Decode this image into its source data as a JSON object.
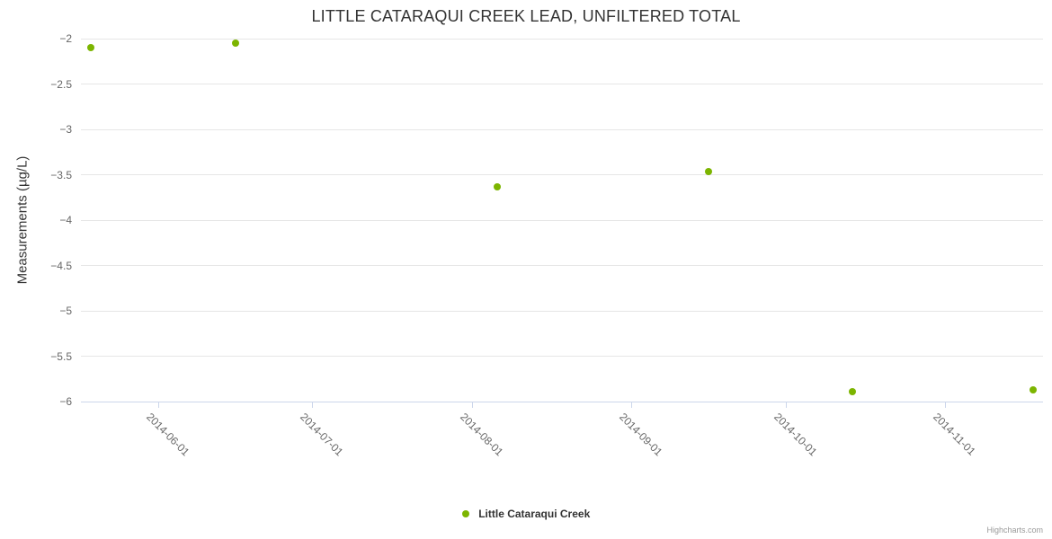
{
  "chart_data": {
    "type": "scatter",
    "title": "LITTLE CATARAQUI CREEK LEAD, UNFILTERED TOTAL",
    "ylabel": "Measurements (µg/L)",
    "grid": true,
    "legend_position": "bottom-center",
    "xaxis": {
      "min": "2014-05-17",
      "max": "2014-11-20",
      "ticks": [
        {
          "date": "2014-06-01",
          "label": "2014-06-01"
        },
        {
          "date": "2014-07-01",
          "label": "2014-07-01"
        },
        {
          "date": "2014-08-01",
          "label": "2014-08-01"
        },
        {
          "date": "2014-09-01",
          "label": "2014-09-01"
        },
        {
          "date": "2014-10-01",
          "label": "2014-10-01"
        },
        {
          "date": "2014-11-01",
          "label": "2014-11-01"
        }
      ]
    },
    "yaxis": {
      "min": -6,
      "max": -2,
      "tick_step": 0.5,
      "ticks": [
        {
          "value": -2,
          "label": "−2"
        },
        {
          "value": -2.5,
          "label": "−2.5"
        },
        {
          "value": -3,
          "label": "−3"
        },
        {
          "value": -3.5,
          "label": "−3.5"
        },
        {
          "value": -4,
          "label": "−4"
        },
        {
          "value": -4.5,
          "label": "−4.5"
        },
        {
          "value": -5,
          "label": "−5"
        },
        {
          "value": -5.5,
          "label": "−5.5"
        },
        {
          "value": -6,
          "label": "−6"
        }
      ]
    },
    "series": [
      {
        "name": "Little Cataraqui Creek",
        "color": "#7cb500",
        "points": [
          {
            "date": "2014-05-19",
            "value": -2.1
          },
          {
            "date": "2014-06-16",
            "value": -2.05
          },
          {
            "date": "2014-08-06",
            "value": -3.63
          },
          {
            "date": "2014-09-16",
            "value": -3.47
          },
          {
            "date": "2014-10-14",
            "value": -5.89
          },
          {
            "date": "2014-11-18",
            "value": -5.87
          }
        ]
      }
    ],
    "legend": {
      "label": "Little Cataraqui Creek"
    },
    "credits_label": "Highcharts.com"
  }
}
